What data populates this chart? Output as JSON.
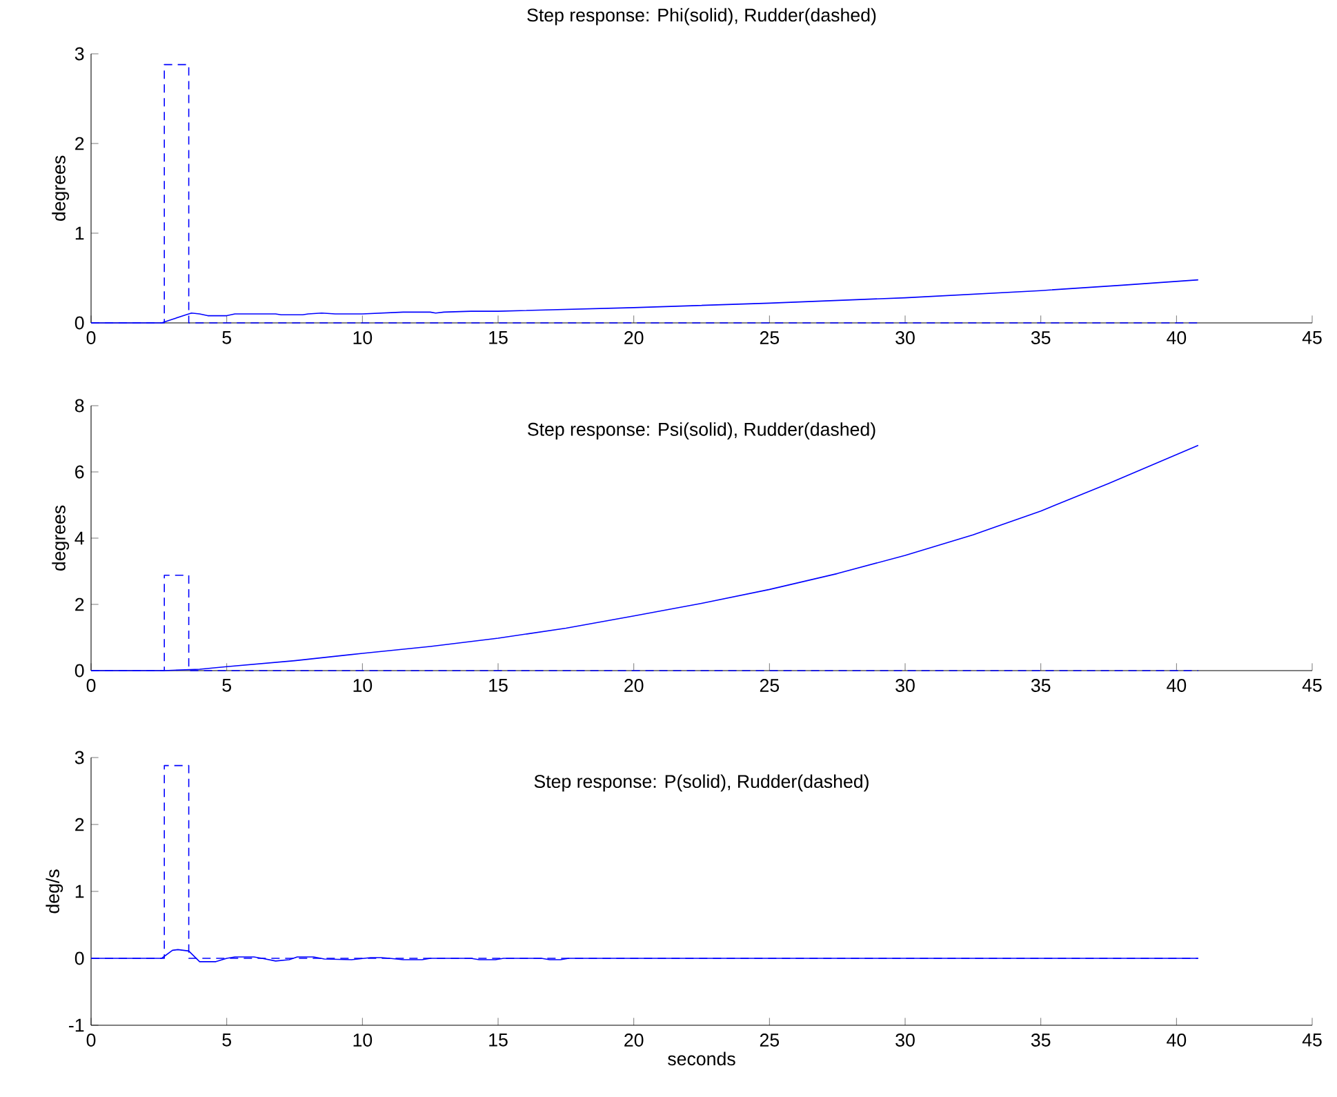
{
  "chart_data": [
    {
      "type": "line",
      "title": "Step response: Phi(solid), Rudder(dashed)",
      "ylabel": "degrees",
      "xlim": [
        0,
        45
      ],
      "ylim": [
        0,
        3
      ],
      "xticks": [
        0,
        5,
        10,
        15,
        20,
        25,
        30,
        35,
        40,
        45
      ],
      "yticks": [
        0,
        1,
        2,
        3
      ],
      "series": [
        {
          "color": "#0000ff",
          "line_style": "solid",
          "x": [
            0,
            2.6,
            3.0,
            3.5,
            3.7,
            4.0,
            4.3,
            5.0,
            5.3,
            6.8,
            7.0,
            7.8,
            8.0,
            8.5,
            9.0,
            10,
            11.5,
            12.5,
            12.7,
            13,
            14,
            15,
            20,
            25,
            30,
            35,
            38,
            40.8
          ],
          "values": [
            0,
            0,
            0.04,
            0.09,
            0.11,
            0.1,
            0.08,
            0.08,
            0.1,
            0.1,
            0.09,
            0.09,
            0.1,
            0.11,
            0.1,
            0.1,
            0.12,
            0.12,
            0.11,
            0.12,
            0.13,
            0.13,
            0.17,
            0.22,
            0.28,
            0.36,
            0.42,
            0.48
          ]
        },
        {
          "color": "#0000ff",
          "line_style": "dashed",
          "x": [
            0,
            2.7,
            2.7,
            3.6,
            3.6,
            40.8
          ],
          "values": [
            0,
            0,
            2.88,
            2.88,
            0,
            0
          ]
        }
      ]
    },
    {
      "type": "line",
      "title": "Step response: Psi(solid), Rudder(dashed)",
      "ylabel": "degrees",
      "xlim": [
        0,
        45
      ],
      "ylim": [
        0,
        8
      ],
      "xticks": [
        0,
        5,
        10,
        15,
        20,
        25,
        30,
        35,
        40,
        45
      ],
      "yticks": [
        0,
        2,
        4,
        6,
        8
      ],
      "series": [
        {
          "color": "#0000ff",
          "line_style": "solid",
          "x": [
            0,
            2.7,
            4,
            5,
            7.5,
            10,
            12.5,
            15,
            17.5,
            20,
            22.5,
            25,
            27.5,
            30,
            32.5,
            35,
            37.5,
            40.8
          ],
          "values": [
            0,
            0,
            0.04,
            0.12,
            0.3,
            0.52,
            0.73,
            0.98,
            1.28,
            1.65,
            2.03,
            2.45,
            2.93,
            3.48,
            4.1,
            4.82,
            5.65,
            6.8
          ]
        },
        {
          "color": "#0000ff",
          "line_style": "dashed",
          "x": [
            0,
            2.7,
            2.7,
            3.6,
            3.6,
            40.8
          ],
          "values": [
            0,
            0,
            2.88,
            2.88,
            0,
            0
          ]
        }
      ]
    },
    {
      "type": "line",
      "title": "Step response: P(solid), Rudder(dashed)",
      "xlabel": "seconds",
      "ylabel": "deg/s",
      "xlim": [
        0,
        45
      ],
      "ylim": [
        -1,
        3
      ],
      "xticks": [
        0,
        5,
        10,
        15,
        20,
        25,
        30,
        35,
        40,
        45
      ],
      "yticks": [
        -1,
        0,
        1,
        2,
        3
      ],
      "series": [
        {
          "color": "#0000ff",
          "line_style": "solid",
          "x": [
            0,
            2.6,
            3.0,
            3.2,
            3.6,
            3.8,
            4.0,
            4.6,
            5.0,
            5.3,
            6.0,
            6.3,
            6.8,
            7.3,
            7.6,
            8.2,
            8.6,
            9.6,
            10.3,
            10.7,
            11.0,
            11.5,
            12.2,
            12.5,
            14.0,
            14.3,
            14.9,
            15.2,
            16.6,
            16.9,
            17.3,
            17.6,
            40.8
          ],
          "values": [
            0,
            0,
            0.12,
            0.13,
            0.11,
            0.03,
            -0.05,
            -0.05,
            0.0,
            0.02,
            0.02,
            0,
            -0.04,
            -0.02,
            0.02,
            0.02,
            -0.01,
            -0.02,
            0.01,
            0.01,
            0,
            -0.02,
            -0.02,
            0,
            0,
            -0.02,
            -0.02,
            0,
            0,
            -0.02,
            -0.02,
            0,
            0
          ]
        },
        {
          "color": "#0000ff",
          "line_style": "dashed",
          "x": [
            0,
            2.7,
            2.7,
            3.6,
            3.6,
            40.8
          ],
          "values": [
            0,
            0,
            2.88,
            2.88,
            0,
            0
          ]
        }
      ]
    }
  ]
}
